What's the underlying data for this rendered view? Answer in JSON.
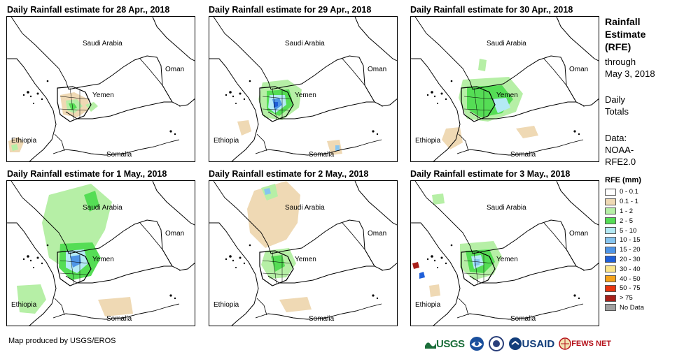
{
  "panels": [
    {
      "title": "Daily Rainfall estimate for 28 Apr., 2018",
      "labels": {
        "saudi": "Saudi Arabia",
        "oman": "Oman",
        "yemen": "Yemen",
        "ethiopia": "Ethiopia",
        "somalia": "Somalia"
      }
    },
    {
      "title": "Daily Rainfall estimate for 29 Apr., 2018",
      "labels": {
        "saudi": "Saudi Arabia",
        "oman": "Oman",
        "yemen": "Yemen",
        "ethiopia": "Ethiopia",
        "somalia": "Somalia"
      }
    },
    {
      "title": "Daily Rainfall estimate for 30 Apr., 2018",
      "labels": {
        "saudi": "Saudi Arabia",
        "oman": "Oman",
        "yemen": "Yemen",
        "ethiopia": "Ethiopia",
        "somalia": "Somalia"
      }
    },
    {
      "title": "Daily Rainfall estimate for 1 May., 2018",
      "labels": {
        "saudi": "Saudi Arabia",
        "oman": "Oman",
        "yemen": "Yemen",
        "ethiopia": "Ethiopia",
        "somalia": "Somalia"
      }
    },
    {
      "title": "Daily Rainfall estimate for 2 May., 2018",
      "labels": {
        "saudi": "Saudi Arabia",
        "oman": "Oman",
        "yemen": "Yemen",
        "ethiopia": "Ethiopia",
        "somalia": "Somalia"
      }
    },
    {
      "title": "Daily Rainfall estimate for 3 May., 2018",
      "labels": {
        "saudi": "Saudi Arabia",
        "oman": "Oman",
        "yemen": "Yemen",
        "ethiopia": "Ethiopia",
        "somalia": "Somalia"
      }
    }
  ],
  "sidebar": {
    "title_line1": "Rainfall",
    "title_line2": "Estimate",
    "title_line3": "(RFE)",
    "through": "through",
    "date": "May 3, 2018",
    "daily_line1": "Daily",
    "daily_line2": "Totals",
    "data_line1": "Data:",
    "data_line2": "NOAA-",
    "data_line3": "RFE2.0"
  },
  "legend": {
    "title": "RFE (mm)",
    "items": [
      {
        "label": "0 - 0.1",
        "color": "#ffffff"
      },
      {
        "label": "0.1 - 1",
        "color": "#efd9b4"
      },
      {
        "label": "1 - 2",
        "color": "#b6efa6"
      },
      {
        "label": "2 - 5",
        "color": "#55dd55"
      },
      {
        "label": "5 - 10",
        "color": "#b4eaf5"
      },
      {
        "label": "10 - 15",
        "color": "#87c5ef"
      },
      {
        "label": "15 - 20",
        "color": "#4f95e6"
      },
      {
        "label": "20 - 30",
        "color": "#1f5fd9"
      },
      {
        "label": "30 - 40",
        "color": "#fbe58c"
      },
      {
        "label": "40 - 50",
        "color": "#f5a21a"
      },
      {
        "label": "50 - 75",
        "color": "#e8340e"
      },
      {
        "label": "> 75",
        "color": "#a8201a"
      },
      {
        "label": "No Data",
        "color": "#a0a0a0"
      }
    ]
  },
  "footer": {
    "credit": "Map produced by USGS/EROS",
    "usgs": "USGS",
    "usaid": "USAID",
    "fews": "FEWS NET"
  }
}
